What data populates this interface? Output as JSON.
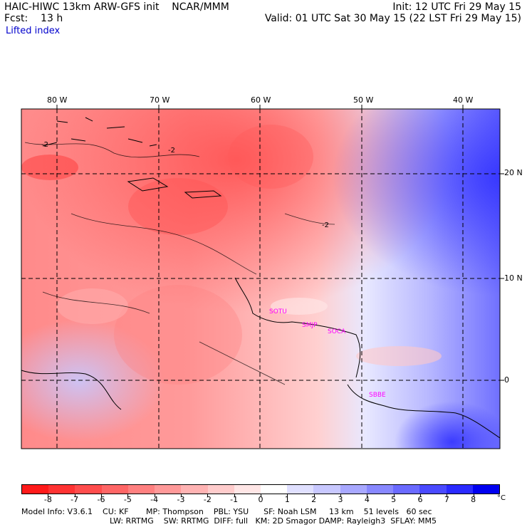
{
  "header": {
    "title": "HAIC-HIWC 13km ARW-GFS init    NCAR/MMM",
    "forecast": "Fcst:    13 h",
    "field": "Lifted index",
    "init": "Init: 12 UTC Fri 29 May 15",
    "valid": "Valid: 01 UTC Sat 30 May 15 (22 LST Fri 29 May 15)"
  },
  "longitude_labels": [
    "80 W",
    "70 W",
    "60 W",
    "50 W",
    "40 W"
  ],
  "latitude_labels": [
    "20 N",
    "10 N",
    "0"
  ],
  "stations": [
    "SOTU",
    "SMJP",
    "SOCA",
    "SBBE"
  ],
  "contour_labels": [
    "-2",
    "-2",
    "-2"
  ],
  "colorbar": {
    "labels": [
      "-8",
      "-7",
      "-6",
      "-5",
      "-4",
      "-3",
      "-2",
      "-1",
      "0",
      "1",
      "2",
      "3",
      "4",
      "5",
      "6",
      "7",
      "8"
    ],
    "unit": "°C",
    "colors": [
      "#ff1a1a",
      "#ff3333",
      "#ff4d4d",
      "#ff6666",
      "#ff8080",
      "#ff9999",
      "#ffb3b3",
      "#ffcccc",
      "#ffe6e6",
      "#ffffff",
      "#e0e0ff",
      "#c8c8ff",
      "#a8a8ff",
      "#8888ff",
      "#6a6aff",
      "#4a4aff",
      "#2a2aff",
      "#0000f0"
    ]
  },
  "footer": {
    "line1": "Model Info: V3.6.1    CU: KF       MP: Thompson    PBL: YSU      SF: Noah LSM     13 km    51 levels   60 sec",
    "line2": "LW: RRTMG    SW: RRTMG  DIFF: full   KM: 2D Smagor DAMP: Rayleigh3  SFLAY: MM5"
  }
}
